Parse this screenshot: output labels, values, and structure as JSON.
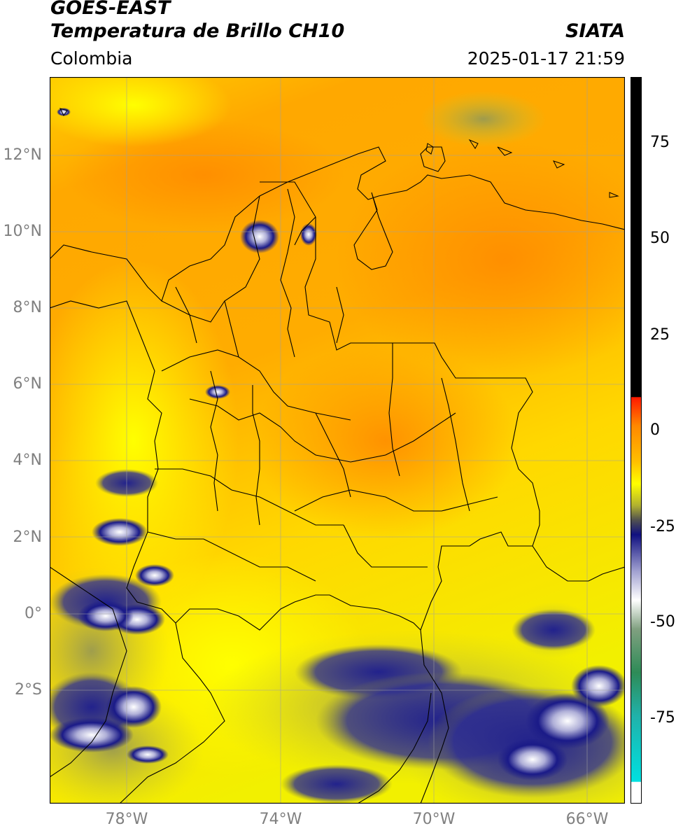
{
  "header": {
    "satellite": "GOES-EAST",
    "product": "Temperatura de Brillo CH10",
    "region": "Colombia",
    "agency": "SIATA",
    "datetime": "2025-01-17 21:59"
  },
  "map": {
    "lat_range": [
      -5,
      14
    ],
    "lon_range": [
      -80,
      -65
    ],
    "grid": true,
    "lat_ticks": [
      "12°N",
      "10°N",
      "8°N",
      "6°N",
      "4°N",
      "2°N",
      "0°",
      "2°S"
    ],
    "lon_ticks": [
      "78°W",
      "74°W",
      "70°W",
      "66°W"
    ]
  },
  "colorbar": {
    "ticks": [
      "75",
      "50",
      "25",
      "0",
      "-25",
      "-50",
      "-75"
    ],
    "colors": {
      "top": "#000000",
      "warm": "#ff2000",
      "orange": "#ff9a00",
      "yellow": "#ffff00",
      "olive": "#a0a040",
      "navy": "#101080",
      "white": "#ffffff",
      "green": "#2e8b57",
      "cyan": "#00d8d8"
    }
  }
}
